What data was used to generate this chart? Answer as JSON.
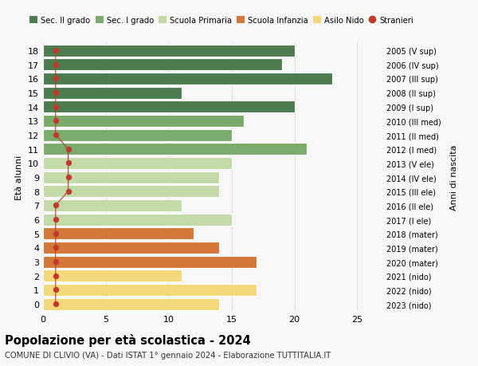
{
  "ages": [
    18,
    17,
    16,
    15,
    14,
    13,
    12,
    11,
    10,
    9,
    8,
    7,
    6,
    5,
    4,
    3,
    2,
    1,
    0
  ],
  "right_labels": [
    "2005 (V sup)",
    "2006 (IV sup)",
    "2007 (III sup)",
    "2008 (II sup)",
    "2009 (I sup)",
    "2010 (III med)",
    "2011 (II med)",
    "2012 (I med)",
    "2013 (V ele)",
    "2014 (IV ele)",
    "2015 (III ele)",
    "2016 (II ele)",
    "2017 (I ele)",
    "2018 (mater)",
    "2019 (mater)",
    "2020 (mater)",
    "2021 (nido)",
    "2022 (nido)",
    "2023 (nido)"
  ],
  "bar_values": [
    20,
    19,
    23,
    11,
    20,
    16,
    15,
    21,
    15,
    14,
    14,
    11,
    15,
    12,
    14,
    17,
    11,
    17,
    14
  ],
  "bar_colors": [
    "#4d7c4f",
    "#4d7c4f",
    "#4d7c4f",
    "#4d7c4f",
    "#4d7c4f",
    "#7aab6a",
    "#7aab6a",
    "#7aab6a",
    "#c2d9a8",
    "#c2d9a8",
    "#c2d9a8",
    "#c2d9a8",
    "#c2d9a8",
    "#d4783a",
    "#d4783a",
    "#d4783a",
    "#f5d87a",
    "#f5d87a",
    "#f5d87a"
  ],
  "stranieri_x": [
    1,
    1,
    1,
    1,
    1,
    1,
    1,
    2,
    2,
    2,
    2,
    1,
    1,
    1,
    1,
    1,
    1,
    1,
    1
  ],
  "stranieri_color": "#c0392b",
  "legend_labels": [
    "Sec. II grado",
    "Sec. I grado",
    "Scuola Primaria",
    "Scuola Infanzia",
    "Asilo Nido",
    "Stranieri"
  ],
  "legend_colors": [
    "#4d7c4f",
    "#7aab6a",
    "#c2d9a8",
    "#d4783a",
    "#f5d87a",
    "#c0392b"
  ],
  "title": "Popolazione per età scolastica - 2024",
  "subtitle": "COMUNE DI CLIVIO (VA) - Dati ISTAT 1° gennaio 2024 - Elaborazione TUTTITALIA.IT",
  "ylabel": "Età alunni",
  "right_ylabel": "Anni di nascita",
  "xlim": [
    0,
    27
  ],
  "xticks": [
    0,
    5,
    10,
    15,
    20,
    25
  ],
  "background_color": "#f7f7f7",
  "grid_color": "#dddddd"
}
